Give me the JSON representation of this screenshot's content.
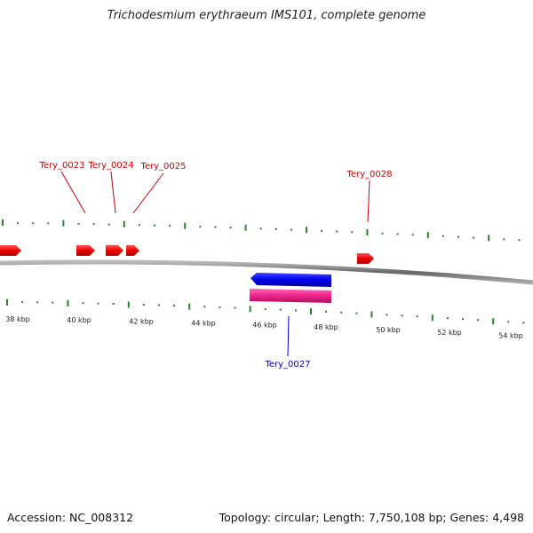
{
  "title": "Trichodesmium erythraeum IMS101, complete genome",
  "footer": {
    "accession": "Accession: NC_008312",
    "summary": "Topology: circular; Length: 7,750,108 bp; Genes: 4,498"
  },
  "scale": {
    "tick_labels": [
      "38 kbp",
      "40 kbp",
      "42 kbp",
      "44 kbp",
      "46 kbp",
      "48 kbp",
      "50 kbp",
      "52 kbp",
      "54 kbp"
    ]
  },
  "genes": [
    {
      "name": "Tery_0023",
      "strand": "+",
      "color": "#dd0000"
    },
    {
      "name": "Tery_0024",
      "strand": "+",
      "color": "#dd0000"
    },
    {
      "name": "Tery_0025",
      "strand": "+",
      "color": "#dd0000"
    },
    {
      "name": "Tery_0027",
      "strand": "-",
      "color": "#0000cc"
    },
    {
      "name": "Tery_0028",
      "strand": "+",
      "color": "#dd0000"
    }
  ],
  "colors": {
    "forward_gene": "#dd0000",
    "reverse_gene": "#0000cc",
    "rna_feature": "#ee2288",
    "tick": "#228822",
    "backbone": "#777777"
  }
}
